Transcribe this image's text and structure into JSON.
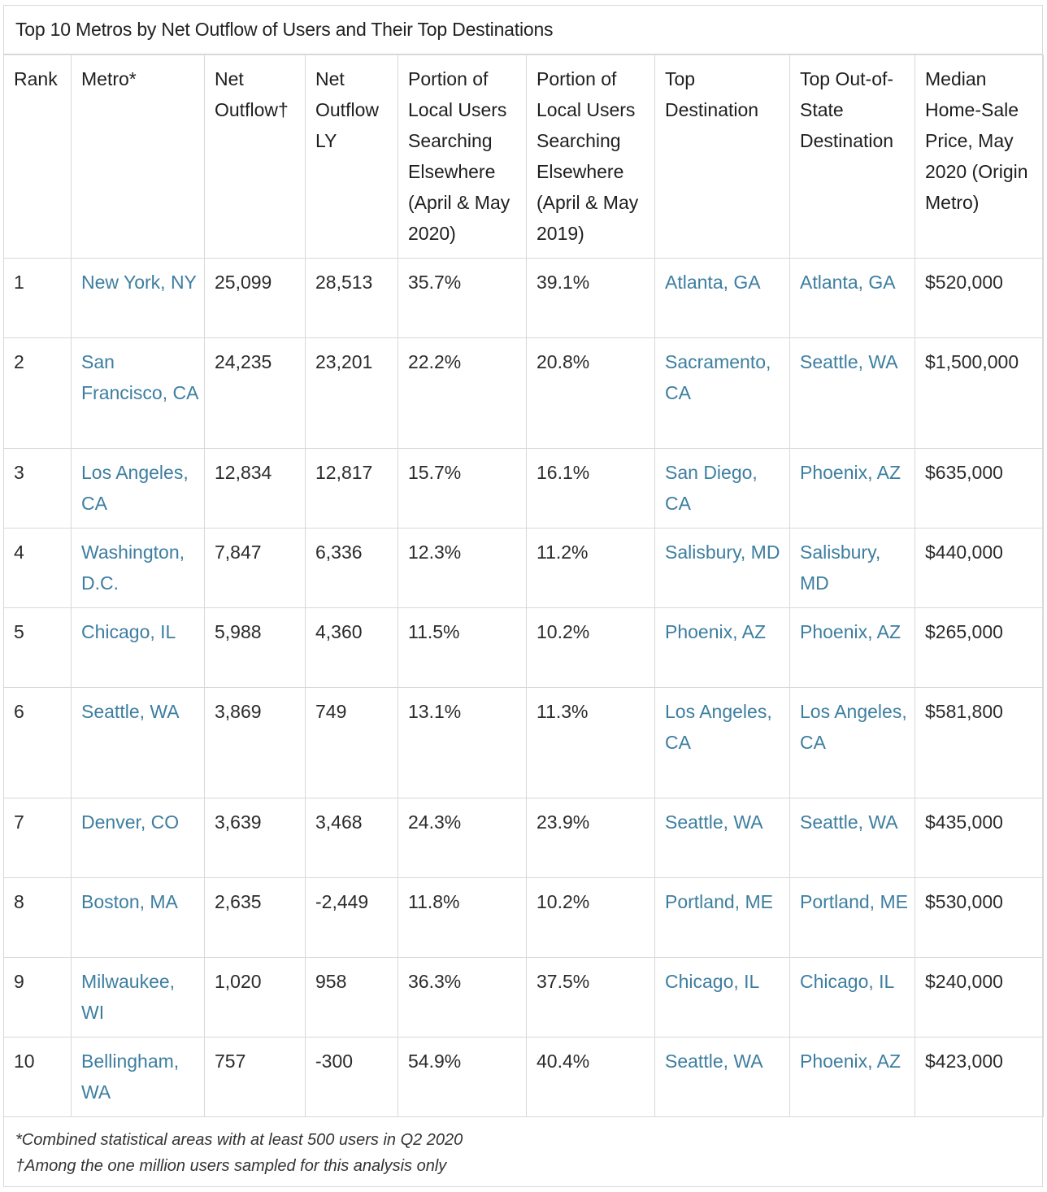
{
  "table": {
    "title": "Top 10 Metros by Net Outflow of Users and Their Top Destinations",
    "columns": [
      "Rank",
      "Metro*",
      "Net Outflow†",
      "Net Outflow LY",
      "Portion of Local Users Searching Elsewhere (April & May 2020)",
      "Portion of Local Users Searching Elsewhere (April & May 2019)",
      "Top Destination",
      "Top Out-of-State Destination",
      "Median Home-Sale Price, May 2020 (Origin Metro)"
    ],
    "rows": [
      {
        "rank": "1",
        "metro": "New York, NY",
        "net_outflow": "25,099",
        "net_outflow_ly": "28,513",
        "portion_2020": "35.7%",
        "portion_2019": "39.1%",
        "top_destination": "Atlanta, GA",
        "top_out_of_state": "Atlanta, GA",
        "median_price": "$520,000"
      },
      {
        "rank": "2",
        "metro": "San Francisco, CA",
        "net_outflow": "24,235",
        "net_outflow_ly": "23,201",
        "portion_2020": "22.2%",
        "portion_2019": "20.8%",
        "top_destination": "Sacramento, CA",
        "top_out_of_state": "Seattle, WA",
        "median_price": "$1,500,000"
      },
      {
        "rank": "3",
        "metro": "Los Angeles, CA",
        "net_outflow": "12,834",
        "net_outflow_ly": "12,817",
        "portion_2020": "15.7%",
        "portion_2019": "16.1%",
        "top_destination": "San Diego, CA",
        "top_out_of_state": "Phoenix, AZ",
        "median_price": "$635,000"
      },
      {
        "rank": "4",
        "metro": "Washington, D.C.",
        "net_outflow": "7,847",
        "net_outflow_ly": "6,336",
        "portion_2020": "12.3%",
        "portion_2019": "11.2%",
        "top_destination": "Salisbury, MD",
        "top_out_of_state": "Salisbury, MD",
        "median_price": "$440,000"
      },
      {
        "rank": "5",
        "metro": "Chicago, IL",
        "net_outflow": "5,988",
        "net_outflow_ly": "4,360",
        "portion_2020": "11.5%",
        "portion_2019": "10.2%",
        "top_destination": "Phoenix, AZ",
        "top_out_of_state": "Phoenix, AZ",
        "median_price": "$265,000"
      },
      {
        "rank": "6",
        "metro": "Seattle, WA",
        "net_outflow": "3,869",
        "net_outflow_ly": "749",
        "portion_2020": "13.1%",
        "portion_2019": "11.3%",
        "top_destination": "Los Angeles, CA",
        "top_out_of_state": "Los Angeles, CA",
        "median_price": "$581,800"
      },
      {
        "rank": "7",
        "metro": "Denver, CO",
        "net_outflow": "3,639",
        "net_outflow_ly": "3,468",
        "portion_2020": "24.3%",
        "portion_2019": "23.9%",
        "top_destination": "Seattle, WA",
        "top_out_of_state": "Seattle, WA",
        "median_price": "$435,000"
      },
      {
        "rank": "8",
        "metro": "Boston, MA",
        "net_outflow": "2,635",
        "net_outflow_ly": "-2,449",
        "portion_2020": "11.8%",
        "portion_2019": "10.2%",
        "top_destination": "Portland, ME",
        "top_out_of_state": "Portland, ME",
        "median_price": "$530,000"
      },
      {
        "rank": "9",
        "metro": "Milwaukee, WI",
        "net_outflow": "1,020",
        "net_outflow_ly": "958",
        "portion_2020": "36.3%",
        "portion_2019": "37.5%",
        "top_destination": "Chicago, IL",
        "top_out_of_state": "Chicago, IL",
        "median_price": "$240,000"
      },
      {
        "rank": "10",
        "metro": "Bellingham, WA",
        "net_outflow": "757",
        "net_outflow_ly": "-300",
        "portion_2020": "54.9%",
        "portion_2019": "40.4%",
        "top_destination": "Seattle, WA",
        "top_out_of_state": "Phoenix, AZ",
        "median_price": "$423,000"
      }
    ],
    "footnotes": [
      "*Combined statistical areas with at least 500 users in Q2 2020",
      "†Among the one million users sampled for this analysis only"
    ]
  },
  "colors": {
    "link": "#3d7ea0",
    "border": "#d8d8d8",
    "text": "#2b2b2b"
  }
}
